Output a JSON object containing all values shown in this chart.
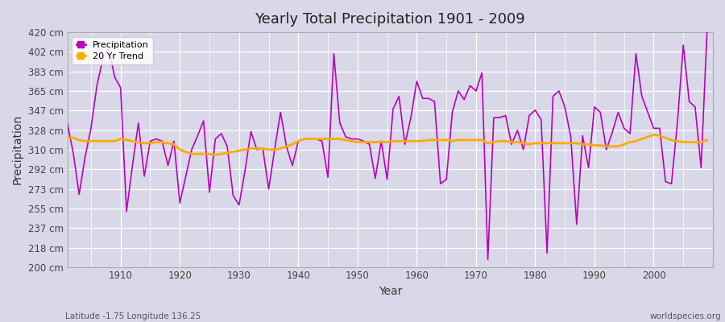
{
  "title": "Yearly Total Precipitation 1901 - 2009",
  "xlabel": "Year",
  "ylabel": "Precipitation",
  "footnote_left": "Latitude -1.75 Longitude 136.25",
  "footnote_right": "worldspecies.org",
  "ylim": [
    200,
    420
  ],
  "yticks": [
    200,
    218,
    237,
    255,
    273,
    292,
    310,
    328,
    347,
    365,
    383,
    402,
    420
  ],
  "bg_color": "#d8d8e8",
  "plot_bg_color": "#d8d8e8",
  "line_color": "#bb00bb",
  "trend_color": "#ffaa00",
  "years": [
    1901,
    1902,
    1903,
    1904,
    1905,
    1906,
    1907,
    1908,
    1909,
    1910,
    1911,
    1912,
    1913,
    1914,
    1915,
    1916,
    1917,
    1918,
    1919,
    1920,
    1921,
    1922,
    1923,
    1924,
    1925,
    1926,
    1927,
    1928,
    1929,
    1930,
    1931,
    1932,
    1933,
    1934,
    1935,
    1936,
    1937,
    1938,
    1939,
    1940,
    1941,
    1942,
    1943,
    1944,
    1945,
    1946,
    1947,
    1948,
    1949,
    1950,
    1951,
    1952,
    1953,
    1954,
    1955,
    1956,
    1957,
    1958,
    1959,
    1960,
    1961,
    1962,
    1963,
    1964,
    1965,
    1966,
    1967,
    1968,
    1969,
    1970,
    1971,
    1972,
    1973,
    1974,
    1975,
    1976,
    1977,
    1978,
    1979,
    1980,
    1981,
    1982,
    1983,
    1984,
    1985,
    1986,
    1987,
    1988,
    1989,
    1990,
    1991,
    1992,
    1993,
    1994,
    1995,
    1996,
    1997,
    1998,
    1999,
    2000,
    2001,
    2002,
    2003,
    2004,
    2005,
    2006,
    2007,
    2008,
    2009
  ],
  "precipitation": [
    335,
    307,
    268,
    303,
    330,
    370,
    395,
    405,
    378,
    368,
    252,
    295,
    335,
    285,
    318,
    320,
    318,
    295,
    318,
    260,
    285,
    310,
    323,
    337,
    270,
    320,
    325,
    313,
    267,
    258,
    290,
    327,
    310,
    311,
    273,
    310,
    345,
    313,
    295,
    318,
    320,
    320,
    320,
    318,
    284,
    400,
    335,
    322,
    320,
    320,
    318,
    315,
    283,
    318,
    282,
    348,
    360,
    315,
    340,
    374,
    358,
    358,
    355,
    278,
    282,
    345,
    365,
    357,
    370,
    365,
    382,
    207,
    340,
    340,
    342,
    315,
    328,
    310,
    342,
    347,
    338,
    213,
    360,
    365,
    350,
    322,
    240,
    323,
    293,
    350,
    345,
    310,
    326,
    345,
    330,
    325,
    400,
    360,
    345,
    330,
    330,
    280,
    278,
    335,
    408,
    355,
    350,
    293,
    420
  ],
  "trend": [
    321,
    321,
    319,
    318,
    318,
    318,
    318,
    318,
    318,
    320,
    319,
    318,
    317,
    316,
    316,
    317,
    317,
    316,
    315,
    310,
    308,
    306,
    306,
    306,
    306,
    305,
    306,
    307,
    308,
    309,
    310,
    311,
    311,
    311,
    310,
    310,
    311,
    313,
    315,
    318,
    320,
    320,
    320,
    320,
    320,
    320,
    320,
    319,
    318,
    317,
    317,
    317,
    317,
    317,
    317,
    318,
    318,
    318,
    318,
    318,
    318,
    319,
    319,
    319,
    319,
    318,
    319,
    319,
    319,
    319,
    319,
    316,
    317,
    318,
    318,
    317,
    317,
    316,
    315,
    316,
    316,
    316,
    316,
    316,
    316,
    316,
    316,
    315,
    315,
    314,
    314,
    313,
    313,
    313,
    315,
    317,
    318,
    320,
    322,
    324,
    323,
    321,
    319,
    318,
    317,
    317,
    317,
    317,
    319
  ]
}
